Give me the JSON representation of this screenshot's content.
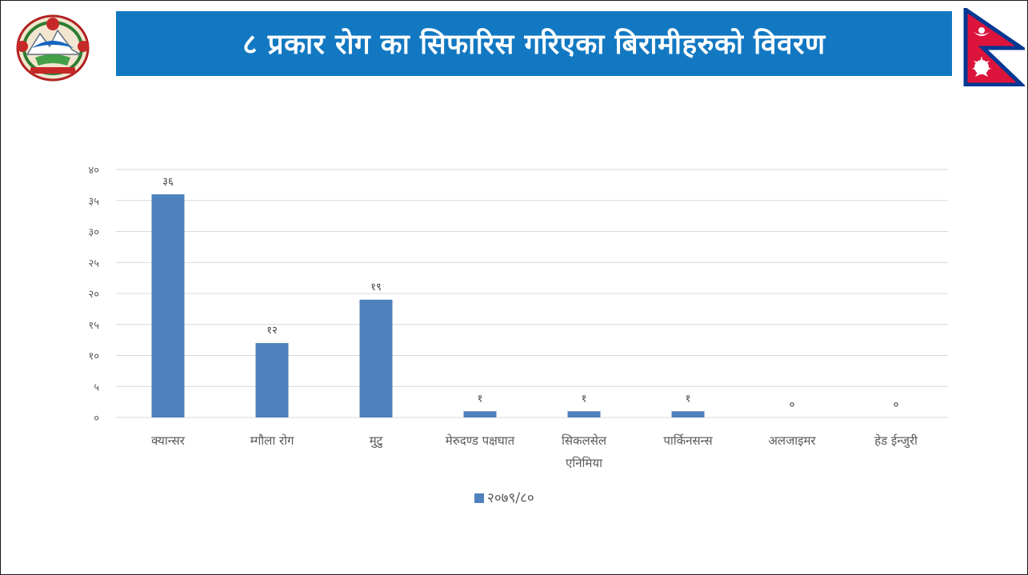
{
  "header": {
    "title": "८ प्रकार रोग का सिफारिस गरिएका बिरामीहरुको विवरण"
  },
  "logos": {
    "left": "government-of-nepal-emblem",
    "right": "nepal-flag"
  },
  "colors": {
    "title_bar": "#1278c2",
    "bar": "#4e81bd",
    "grid": "#d9d9d9",
    "flag_red": "#dc143c",
    "flag_blue": "#003893"
  },
  "chart_data": {
    "type": "bar",
    "categories": [
      "क्यान्सर",
      "म्गौला रोग",
      "मुटु",
      "मेरुदण्ड पक्षघात",
      "सिकलसेल एनिमिया",
      "पार्किनसन्स",
      "अलजाइमर",
      "हेड ईन्जुरी"
    ],
    "category_lines": [
      [
        "क्यान्सर"
      ],
      [
        "म्गौला रोग"
      ],
      [
        "मुटु"
      ],
      [
        "मेरुदण्ड पक्षघात"
      ],
      [
        "सिकलसेल",
        "एनिमिया"
      ],
      [
        "पार्किनसन्स"
      ],
      [
        "अलजाइमर"
      ],
      [
        "हेड ईन्जुरी"
      ]
    ],
    "series": [
      {
        "name": "२०७९/८०",
        "values": [
          36,
          12,
          19,
          1,
          1,
          1,
          0,
          0
        ]
      }
    ],
    "value_labels": [
      "३६",
      "१२",
      "१९",
      "१",
      "१",
      "१",
      "०",
      "०"
    ],
    "y_ticks": [
      0,
      5,
      10,
      15,
      20,
      25,
      30,
      35,
      40
    ],
    "y_tick_labels": [
      "०",
      "५",
      "१०",
      "१५",
      "२०",
      "२५",
      "३०",
      "३५",
      "४०"
    ],
    "ylim": [
      0,
      40
    ],
    "title": "",
    "xlabel": "",
    "ylabel": "",
    "grid": true,
    "legend": "bottom-center"
  }
}
